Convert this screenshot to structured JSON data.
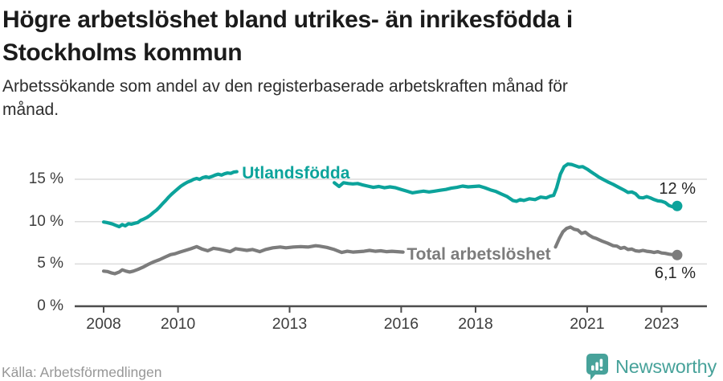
{
  "header": {
    "title_lines": [
      "Högre arbetslöshet bland utrikes- än inrikesfödda i",
      "Stockholms kommun"
    ],
    "subtitle_lines": [
      "Arbetssökande som andel av den registerbaserade arbetskraften månad för",
      "månad."
    ]
  },
  "footer": {
    "source": "Källa: Arbetsförmedlingen",
    "brand": "Newsworthy"
  },
  "colors": {
    "teal_line": "#0ca39b",
    "gray_line": "#7c7c7c",
    "grid": "#dcdcdc",
    "axis": "#4d4d4d",
    "axis_text": "#3d3d3d",
    "end_label_text": "#262626",
    "logo_teal": "#47a29a"
  },
  "chart_data": {
    "type": "line",
    "title": "Högre arbetslöshet bland utrikes- än inrikesfödda i Stockholms kommun",
    "subtitle": "Arbetssökande som andel av den registerbaserade arbetskraften månad för månad.",
    "xlabel": "",
    "ylabel": "%",
    "x_axis": {
      "ticks": [
        2008,
        2010,
        2013,
        2016,
        2018,
        2021,
        2023
      ],
      "range": [
        2007.2,
        2024.2
      ]
    },
    "y_axis": {
      "tick_values": [
        0,
        5,
        10,
        15
      ],
      "tick_labels": [
        "0 %",
        "5 %",
        "10 %",
        "15 %"
      ],
      "range": [
        0,
        18
      ],
      "grid": true
    },
    "series": [
      {
        "name": "Utlandsfödda",
        "color": "#0ca39b",
        "end_label": "12 %",
        "end_value": 11.85,
        "label_at": [
          2011.72,
          15.65
        ],
        "end_label_side": "above",
        "segments": [
          [
            [
              2008.0,
              9.95
            ],
            [
              2008.08,
              9.9
            ],
            [
              2008.17,
              9.8
            ],
            [
              2008.25,
              9.7
            ],
            [
              2008.33,
              9.55
            ],
            [
              2008.42,
              9.4
            ],
            [
              2008.5,
              9.65
            ],
            [
              2008.58,
              9.5
            ],
            [
              2008.67,
              9.75
            ],
            [
              2008.75,
              9.7
            ],
            [
              2008.83,
              9.8
            ],
            [
              2008.92,
              9.9
            ],
            [
              2009.0,
              10.15
            ],
            [
              2009.08,
              10.3
            ],
            [
              2009.17,
              10.5
            ],
            [
              2009.25,
              10.75
            ],
            [
              2009.33,
              11.05
            ],
            [
              2009.42,
              11.35
            ],
            [
              2009.5,
              11.7
            ],
            [
              2009.58,
              12.1
            ],
            [
              2009.67,
              12.5
            ],
            [
              2009.75,
              12.9
            ],
            [
              2009.83,
              13.25
            ],
            [
              2009.92,
              13.6
            ],
            [
              2010.0,
              13.9
            ],
            [
              2010.08,
              14.2
            ],
            [
              2010.17,
              14.45
            ],
            [
              2010.25,
              14.65
            ],
            [
              2010.33,
              14.8
            ],
            [
              2010.42,
              15.0
            ],
            [
              2010.5,
              15.1
            ],
            [
              2010.58,
              15.0
            ],
            [
              2010.67,
              15.2
            ],
            [
              2010.75,
              15.3
            ],
            [
              2010.83,
              15.2
            ],
            [
              2010.92,
              15.35
            ],
            [
              2011.0,
              15.5
            ],
            [
              2011.08,
              15.6
            ],
            [
              2011.17,
              15.5
            ],
            [
              2011.25,
              15.65
            ],
            [
              2011.33,
              15.75
            ],
            [
              2011.42,
              15.7
            ],
            [
              2011.5,
              15.85
            ],
            [
              2011.58,
              15.9
            ]
          ],
          [
            [
              2014.2,
              14.6
            ],
            [
              2014.33,
              14.15
            ],
            [
              2014.45,
              14.6
            ],
            [
              2014.58,
              14.5
            ],
            [
              2014.7,
              14.45
            ],
            [
              2014.83,
              14.5
            ],
            [
              2014.95,
              14.35
            ],
            [
              2015.1,
              14.2
            ],
            [
              2015.25,
              14.05
            ],
            [
              2015.4,
              14.15
            ],
            [
              2015.55,
              14.0
            ],
            [
              2015.7,
              14.1
            ],
            [
              2015.85,
              14.0
            ],
            [
              2016.0,
              13.8
            ],
            [
              2016.15,
              13.6
            ],
            [
              2016.3,
              13.4
            ],
            [
              2016.45,
              13.5
            ],
            [
              2016.6,
              13.6
            ],
            [
              2016.75,
              13.5
            ],
            [
              2016.9,
              13.6
            ],
            [
              2017.05,
              13.7
            ],
            [
              2017.2,
              13.8
            ],
            [
              2017.35,
              13.95
            ],
            [
              2017.5,
              14.05
            ],
            [
              2017.65,
              14.2
            ],
            [
              2017.8,
              14.1
            ],
            [
              2017.95,
              14.15
            ],
            [
              2018.1,
              14.2
            ],
            [
              2018.25,
              14.0
            ],
            [
              2018.4,
              13.75
            ],
            [
              2018.55,
              13.55
            ],
            [
              2018.7,
              13.25
            ],
            [
              2018.85,
              12.95
            ],
            [
              2019.0,
              12.5
            ],
            [
              2019.1,
              12.4
            ],
            [
              2019.2,
              12.6
            ],
            [
              2019.3,
              12.5
            ],
            [
              2019.45,
              12.7
            ],
            [
              2019.6,
              12.6
            ],
            [
              2019.75,
              12.9
            ],
            [
              2019.9,
              12.8
            ],
            [
              2020.0,
              13.0
            ],
            [
              2020.1,
              13.1
            ],
            [
              2020.18,
              14.0
            ],
            [
              2020.28,
              15.6
            ],
            [
              2020.38,
              16.5
            ],
            [
              2020.48,
              16.8
            ],
            [
              2020.58,
              16.75
            ],
            [
              2020.68,
              16.6
            ],
            [
              2020.78,
              16.45
            ],
            [
              2020.88,
              16.5
            ],
            [
              2021.0,
              16.2
            ],
            [
              2021.1,
              15.9
            ],
            [
              2021.2,
              15.6
            ],
            [
              2021.3,
              15.3
            ],
            [
              2021.4,
              15.05
            ],
            [
              2021.55,
              14.7
            ],
            [
              2021.7,
              14.4
            ],
            [
              2021.85,
              14.05
            ],
            [
              2022.0,
              13.7
            ],
            [
              2022.1,
              13.45
            ],
            [
              2022.2,
              13.5
            ],
            [
              2022.3,
              13.3
            ],
            [
              2022.4,
              12.85
            ],
            [
              2022.5,
              12.8
            ],
            [
              2022.6,
              12.95
            ],
            [
              2022.7,
              12.8
            ],
            [
              2022.8,
              12.6
            ],
            [
              2022.9,
              12.45
            ],
            [
              2023.0,
              12.4
            ],
            [
              2023.1,
              12.25
            ],
            [
              2023.2,
              11.9
            ],
            [
              2023.3,
              11.75
            ],
            [
              2023.42,
              11.85
            ]
          ]
        ]
      },
      {
        "name": "Total arbetslöshet",
        "color": "#7c7c7c",
        "end_label": "6,1 %",
        "end_value": 6.05,
        "label_at": [
          2016.15,
          6.05
        ],
        "end_label_side": "below",
        "segments": [
          [
            [
              2008.0,
              4.15
            ],
            [
              2008.1,
              4.1
            ],
            [
              2008.2,
              3.95
            ],
            [
              2008.3,
              3.85
            ],
            [
              2008.42,
              4.05
            ],
            [
              2008.5,
              4.3
            ],
            [
              2008.6,
              4.15
            ],
            [
              2008.7,
              4.05
            ],
            [
              2008.8,
              4.15
            ],
            [
              2008.92,
              4.35
            ],
            [
              2009.05,
              4.6
            ],
            [
              2009.2,
              4.95
            ],
            [
              2009.35,
              5.25
            ],
            [
              2009.5,
              5.5
            ],
            [
              2009.65,
              5.8
            ],
            [
              2009.8,
              6.1
            ],
            [
              2009.92,
              6.2
            ],
            [
              2010.05,
              6.4
            ],
            [
              2010.2,
              6.6
            ],
            [
              2010.35,
              6.8
            ],
            [
              2010.5,
              7.05
            ],
            [
              2010.65,
              6.75
            ],
            [
              2010.8,
              6.55
            ],
            [
              2010.95,
              6.85
            ],
            [
              2011.1,
              6.75
            ],
            [
              2011.25,
              6.6
            ],
            [
              2011.4,
              6.45
            ],
            [
              2011.55,
              6.8
            ],
            [
              2011.7,
              6.7
            ],
            [
              2011.85,
              6.6
            ],
            [
              2012.0,
              6.7
            ],
            [
              2012.2,
              6.45
            ],
            [
              2012.35,
              6.7
            ],
            [
              2012.55,
              6.9
            ],
            [
              2012.75,
              7.0
            ],
            [
              2012.9,
              6.9
            ],
            [
              2013.1,
              7.0
            ],
            [
              2013.3,
              7.05
            ],
            [
              2013.5,
              7.0
            ],
            [
              2013.7,
              7.15
            ],
            [
              2013.8,
              7.1
            ],
            [
              2014.0,
              6.95
            ],
            [
              2014.2,
              6.7
            ],
            [
              2014.4,
              6.35
            ],
            [
              2014.55,
              6.5
            ],
            [
              2014.7,
              6.4
            ],
            [
              2014.85,
              6.45
            ],
            [
              2015.0,
              6.5
            ],
            [
              2015.15,
              6.6
            ],
            [
              2015.3,
              6.5
            ],
            [
              2015.45,
              6.55
            ],
            [
              2015.6,
              6.45
            ],
            [
              2015.75,
              6.5
            ],
            [
              2015.9,
              6.45
            ],
            [
              2016.05,
              6.4
            ]
          ],
          [
            [
              2020.15,
              7.0
            ],
            [
              2020.25,
              8.0
            ],
            [
              2020.35,
              8.8
            ],
            [
              2020.45,
              9.2
            ],
            [
              2020.55,
              9.35
            ],
            [
              2020.65,
              9.1
            ],
            [
              2020.75,
              9.0
            ],
            [
              2020.85,
              8.6
            ],
            [
              2020.95,
              8.75
            ],
            [
              2021.05,
              8.4
            ],
            [
              2021.15,
              8.15
            ],
            [
              2021.25,
              8.0
            ],
            [
              2021.4,
              7.7
            ],
            [
              2021.55,
              7.45
            ],
            [
              2021.7,
              7.15
            ],
            [
              2021.8,
              7.1
            ],
            [
              2021.9,
              6.85
            ],
            [
              2022.0,
              6.95
            ],
            [
              2022.1,
              6.7
            ],
            [
              2022.2,
              6.75
            ],
            [
              2022.3,
              6.55
            ],
            [
              2022.4,
              6.5
            ],
            [
              2022.5,
              6.6
            ],
            [
              2022.6,
              6.5
            ],
            [
              2022.7,
              6.45
            ],
            [
              2022.8,
              6.35
            ],
            [
              2022.9,
              6.45
            ],
            [
              2023.0,
              6.3
            ],
            [
              2023.1,
              6.25
            ],
            [
              2023.2,
              6.15
            ],
            [
              2023.3,
              6.1
            ],
            [
              2023.42,
              6.05
            ]
          ]
        ]
      }
    ],
    "legend_position": "inline-labels"
  }
}
